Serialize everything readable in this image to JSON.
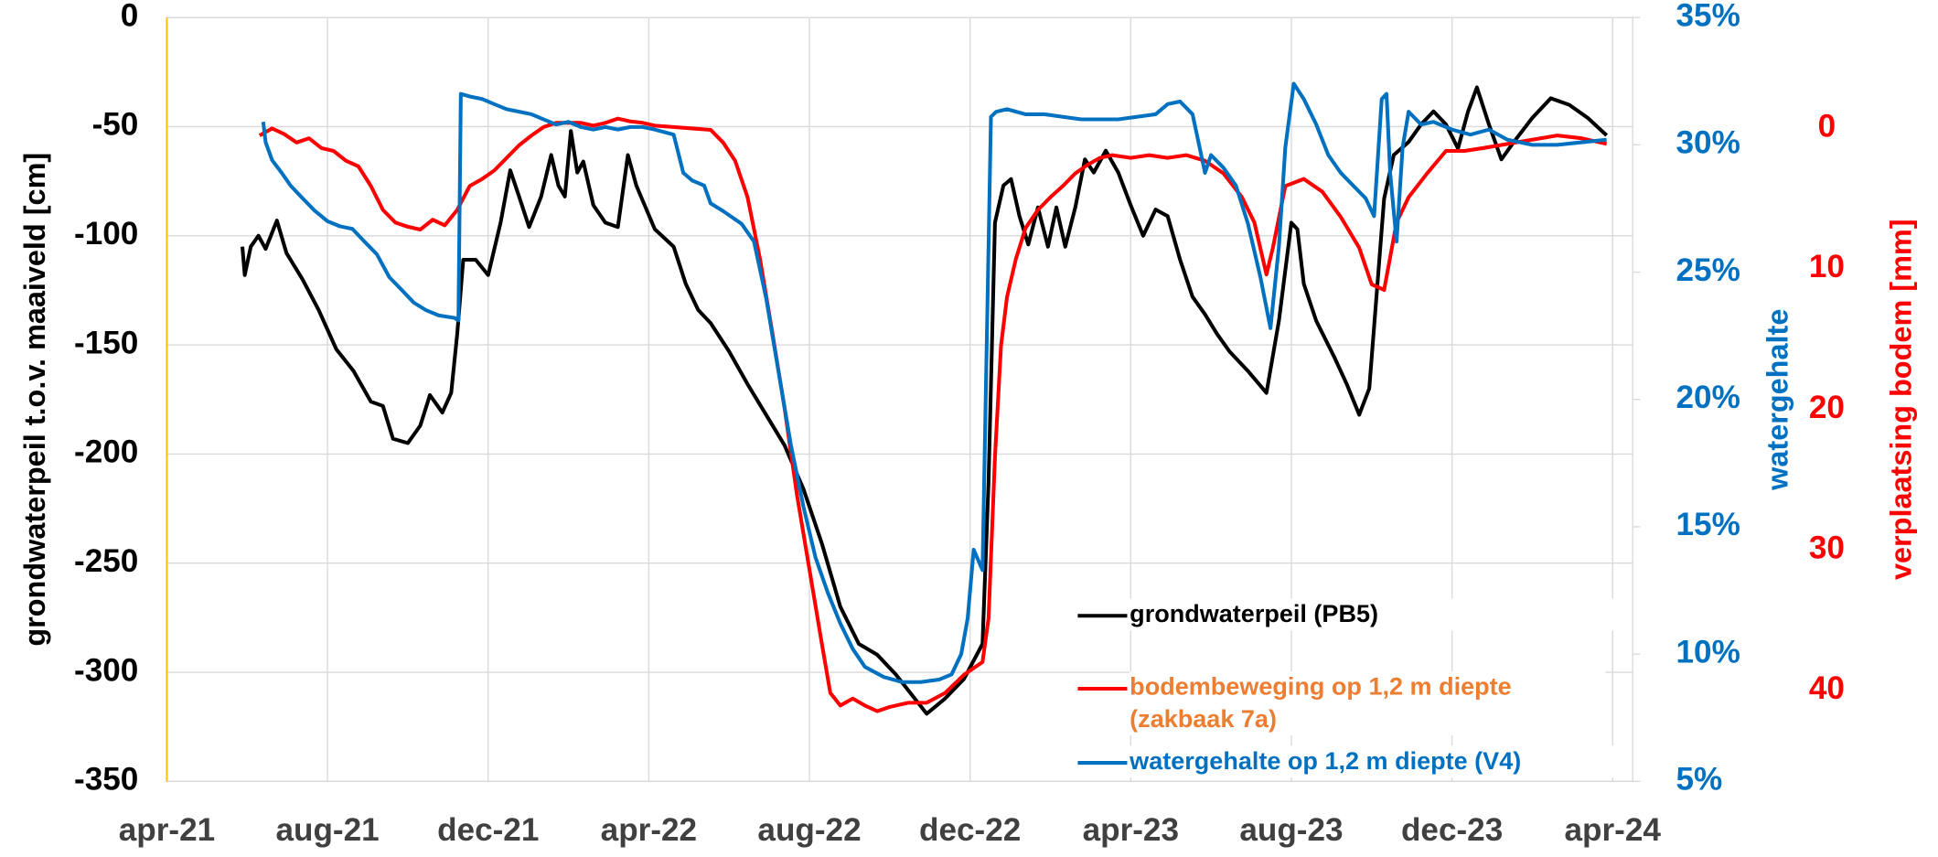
{
  "chart_data": {
    "type": "line",
    "y_label": "grondwaterpeil t.o.v. maaiveld [cm]",
    "y2_label": "watergehalte",
    "y3_label": "verplaatsing bodem [mm]",
    "xlim": [
      0,
      36.5
    ],
    "xticks": [
      {
        "value": 0,
        "label": "apr-21"
      },
      {
        "value": 4,
        "label": "aug-21"
      },
      {
        "value": 8,
        "label": "dec-21"
      },
      {
        "value": 12,
        "label": "apr-22"
      },
      {
        "value": 16,
        "label": "aug-22"
      },
      {
        "value": 20,
        "label": "dec-22"
      },
      {
        "value": 24,
        "label": "apr-23"
      },
      {
        "value": 28,
        "label": "aug-23"
      },
      {
        "value": 32,
        "label": "dec-23"
      },
      {
        "value": 36,
        "label": "apr-24"
      }
    ],
    "ylim": [
      -350,
      0
    ],
    "yticks": [
      -350,
      -300,
      -250,
      -200,
      -150,
      -100,
      -50,
      0
    ],
    "y2lim": [
      5,
      35
    ],
    "y2ticks": [
      {
        "value": 5,
        "label": "5%"
      },
      {
        "value": 10,
        "label": "10%"
      },
      {
        "value": 15,
        "label": "15%"
      },
      {
        "value": 20,
        "label": "20%"
      },
      {
        "value": 25,
        "label": "25%"
      },
      {
        "value": 30,
        "label": "30%"
      },
      {
        "value": 35,
        "label": "35%"
      }
    ],
    "y3lim": [
      46.5,
      -7.9
    ],
    "y3ticks": [
      0,
      10,
      20,
      30,
      40
    ],
    "y_color": "#000000",
    "y2_color": "#0070c0",
    "y3_color": "#ff0000",
    "grid": true,
    "legend": "lower right",
    "series": [
      {
        "name": "grondwaterpeil (PB5)",
        "color": "#000000",
        "legend_text_color": "#000000",
        "axis": "y",
        "x": [
          1.88,
          1.94,
          2.09,
          2.28,
          2.46,
          2.74,
          2.98,
          3.38,
          3.78,
          4.22,
          4.65,
          5.08,
          5.38,
          5.63,
          6.0,
          6.31,
          6.55,
          6.86,
          7.08,
          7.23,
          7.38,
          7.69,
          8.0,
          8.31,
          8.55,
          8.77,
          9.02,
          9.32,
          9.57,
          9.75,
          9.91,
          10.06,
          10.22,
          10.37,
          10.62,
          10.92,
          11.23,
          11.48,
          11.69,
          12.15,
          12.62,
          12.92,
          13.23,
          13.54,
          14.0,
          14.46,
          14.92,
          15.38,
          15.85,
          16.31,
          16.77,
          17.23,
          17.69,
          18.15,
          18.62,
          18.92,
          19.38,
          19.85,
          20.31,
          20.46,
          20.62,
          20.83,
          21.02,
          21.23,
          21.45,
          21.69,
          21.94,
          22.15,
          22.37,
          22.62,
          22.86,
          23.08,
          23.38,
          23.69,
          24.0,
          24.31,
          24.62,
          24.92,
          25.23,
          25.54,
          25.85,
          26.15,
          26.46,
          26.92,
          27.38,
          27.69,
          28.0,
          28.15,
          28.31,
          28.62,
          29.08,
          29.38,
          29.69,
          29.94,
          30.31,
          30.55,
          30.92,
          31.23,
          31.54,
          31.85,
          32.15,
          32.4,
          32.62,
          32.92,
          33.23,
          33.54,
          34.0,
          34.46,
          34.92,
          35.38,
          35.85
        ],
        "values": [
          -105,
          -118,
          -105,
          -100,
          -106,
          -93,
          -108,
          -120,
          -134,
          -152,
          -162,
          -176,
          -178,
          -193,
          -195,
          -187,
          -173,
          -181,
          -172,
          -145,
          -111,
          -111,
          -118,
          -94,
          -70,
          -82,
          -96,
          -82,
          -63,
          -77,
          -82,
          -52,
          -71,
          -66,
          -86,
          -94,
          -96,
          -63,
          -77,
          -97,
          -105,
          -122,
          -134,
          -140,
          -153,
          -168,
          -182,
          -196,
          -216,
          -241,
          -270,
          -287,
          -292,
          -301,
          -312,
          -319,
          -312,
          -303,
          -287,
          -213,
          -94,
          -77,
          -74,
          -91,
          -104,
          -87,
          -105,
          -87,
          -105,
          -87,
          -65,
          -71,
          -61,
          -71,
          -86,
          -100,
          -88,
          -91,
          -111,
          -128,
          -136,
          -145,
          -153,
          -162,
          -172,
          -139,
          -94,
          -97,
          -122,
          -139,
          -156,
          -168,
          -182,
          -170,
          -83,
          -63,
          -57,
          -49,
          -43,
          -49,
          -60,
          -43,
          -32,
          -49,
          -65,
          -57,
          -46,
          -37,
          -40,
          -46,
          -54
        ]
      },
      {
        "name": "bodembeweging op 1,2 m diepte (zakbaak 7a)",
        "color": "#ff0000",
        "legend_text_color": "#ed7d31",
        "axis": "y3",
        "x": [
          2.31,
          2.62,
          2.92,
          3.23,
          3.54,
          3.85,
          4.15,
          4.46,
          4.77,
          5.08,
          5.38,
          5.69,
          6.0,
          6.31,
          6.62,
          6.92,
          7.23,
          7.54,
          7.85,
          8.15,
          8.46,
          8.77,
          9.08,
          9.38,
          9.69,
          10.0,
          10.31,
          10.62,
          10.92,
          11.23,
          11.54,
          11.85,
          12.15,
          12.62,
          13.08,
          13.54,
          13.85,
          14.15,
          14.46,
          14.77,
          15.08,
          15.38,
          15.69,
          16.0,
          16.31,
          16.52,
          16.77,
          17.08,
          17.38,
          17.69,
          18.0,
          18.46,
          18.92,
          19.38,
          19.85,
          20.31,
          20.46,
          20.62,
          20.77,
          20.92,
          21.14,
          21.38,
          21.69,
          22.0,
          22.31,
          22.62,
          22.92,
          23.23,
          23.54,
          24.0,
          24.46,
          24.92,
          25.38,
          25.85,
          26.31,
          26.77,
          27.08,
          27.38,
          27.54,
          27.85,
          28.31,
          28.77,
          29.23,
          29.69,
          30.0,
          30.31,
          30.62,
          30.92,
          31.38,
          31.85,
          32.31,
          32.77,
          33.38,
          34.0,
          34.62,
          35.23,
          35.85
        ],
        "values": [
          0.5,
          0,
          0.4,
          1.0,
          0.7,
          1.4,
          1.6,
          2.3,
          2.7,
          4.1,
          5.8,
          6.7,
          7.0,
          7.2,
          6.5,
          6.9,
          5.8,
          4.1,
          3.6,
          3.0,
          2.1,
          1.2,
          0.5,
          -0.1,
          -0.4,
          -0.4,
          -0.4,
          -0.2,
          -0.4,
          -0.7,
          -0.5,
          -0.4,
          -0.2,
          -0.1,
          0,
          0.1,
          1.0,
          2.3,
          4.9,
          9.3,
          14.6,
          19.9,
          26.1,
          31.4,
          36.7,
          40.2,
          41.1,
          40.6,
          41.1,
          41.5,
          41.2,
          40.9,
          40.9,
          40.2,
          38.9,
          38.0,
          34.9,
          23.4,
          15.5,
          12.0,
          9.3,
          7.1,
          5.8,
          4.9,
          4.1,
          3.2,
          2.6,
          2.1,
          1.9,
          2.1,
          1.9,
          2.1,
          1.9,
          2.3,
          3.2,
          4.9,
          6.7,
          10.4,
          8.5,
          4.1,
          3.6,
          4.5,
          6.3,
          8.5,
          11.1,
          11.5,
          6.7,
          4.9,
          3.2,
          1.6,
          1.6,
          1.4,
          1.1,
          0.8,
          0.5,
          0.7,
          1.1
        ]
      },
      {
        "name": "watergehalte op 1,2 m diepte (V4)",
        "color": "#0070c0",
        "legend_text_color": "#0070c0",
        "axis": "y2",
        "x": [
          2.4,
          2.46,
          2.62,
          2.86,
          3.08,
          3.38,
          3.69,
          4.0,
          4.31,
          4.62,
          4.92,
          5.23,
          5.54,
          5.85,
          6.15,
          6.46,
          6.77,
          7.17,
          7.26,
          7.32,
          7.54,
          7.85,
          8.15,
          8.46,
          8.77,
          9.08,
          9.38,
          9.69,
          10.0,
          10.31,
          10.62,
          10.92,
          11.23,
          11.54,
          11.85,
          12.15,
          12.62,
          12.86,
          13.08,
          13.38,
          13.54,
          13.85,
          14.31,
          14.62,
          14.92,
          15.23,
          15.54,
          15.85,
          16.15,
          16.46,
          16.77,
          17.08,
          17.38,
          17.85,
          18.31,
          18.77,
          19.23,
          19.54,
          19.78,
          19.94,
          20.09,
          20.31,
          20.52,
          20.65,
          20.92,
          21.38,
          21.85,
          22.31,
          22.77,
          23.23,
          23.69,
          24.15,
          24.62,
          24.92,
          25.23,
          25.54,
          25.85,
          26.0,
          26.31,
          26.62,
          26.92,
          27.23,
          27.48,
          27.69,
          27.85,
          28.06,
          28.31,
          28.62,
          28.92,
          29.23,
          29.54,
          29.85,
          30.06,
          30.25,
          30.37,
          30.46,
          30.62,
          30.77,
          30.92,
          31.23,
          31.54,
          32.0,
          32.46,
          32.92,
          33.38,
          34.0,
          34.62,
          35.23,
          35.85
        ],
        "values": [
          30.9,
          30.1,
          29.4,
          28.9,
          28.4,
          27.9,
          27.4,
          27.0,
          26.8,
          26.7,
          26.2,
          25.7,
          24.8,
          24.3,
          23.8,
          23.5,
          23.3,
          23.2,
          23.1,
          32.0,
          31.9,
          31.8,
          31.6,
          31.4,
          31.3,
          31.2,
          31.0,
          30.8,
          30.9,
          30.7,
          30.6,
          30.7,
          30.6,
          30.7,
          30.7,
          30.6,
          30.4,
          28.9,
          28.6,
          28.4,
          27.7,
          27.4,
          26.9,
          26.2,
          24.0,
          21.1,
          18.2,
          15.8,
          13.8,
          12.4,
          11.2,
          10.2,
          9.5,
          9.1,
          8.9,
          8.9,
          9.0,
          9.2,
          10.0,
          11.4,
          14.1,
          13.3,
          31.1,
          31.3,
          31.4,
          31.2,
          31.2,
          31.1,
          31.0,
          31.0,
          31.0,
          31.1,
          31.2,
          31.6,
          31.7,
          31.2,
          28.9,
          29.6,
          29.1,
          28.4,
          26.9,
          24.8,
          22.8,
          26.0,
          29.9,
          32.4,
          31.8,
          30.8,
          29.6,
          28.9,
          28.4,
          27.9,
          27.2,
          31.8,
          32.0,
          28.9,
          26.2,
          29.9,
          31.3,
          30.8,
          30.9,
          30.6,
          30.4,
          30.6,
          30.2,
          30.0,
          30.0,
          30.1,
          30.2
        ]
      }
    ]
  }
}
